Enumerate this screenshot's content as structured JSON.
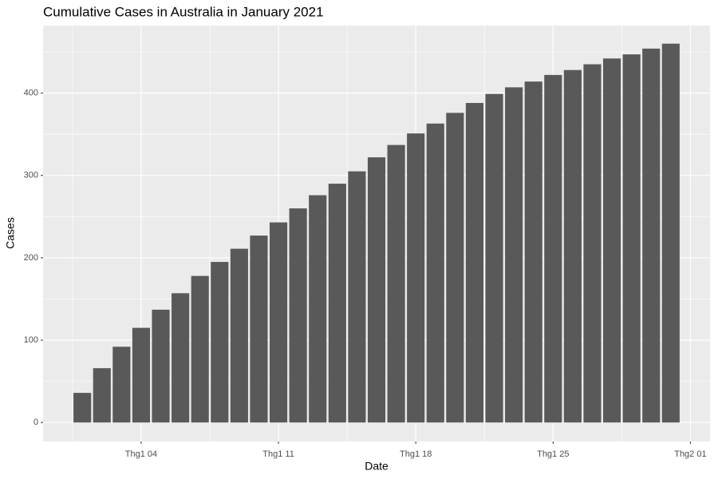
{
  "chart_data": {
    "type": "bar",
    "title": "Cumulative Cases in Australia in January 2021",
    "x_label": "Date",
    "y_label": "Cases",
    "x": [
      1,
      2,
      3,
      4,
      5,
      6,
      7,
      8,
      9,
      10,
      11,
      12,
      13,
      14,
      15,
      16,
      17,
      18,
      19,
      20,
      21,
      22,
      23,
      24,
      25,
      26,
      27,
      28,
      29,
      30,
      31
    ],
    "values": [
      36,
      66,
      92,
      115,
      137,
      157,
      178,
      195,
      211,
      227,
      243,
      260,
      276,
      290,
      305,
      322,
      337,
      351,
      363,
      376,
      388,
      399,
      407,
      414,
      422,
      428,
      435,
      442,
      447,
      454,
      460
    ],
    "color": "#595959",
    "xlim": [
      -1,
      33
    ],
    "xticks": [
      {
        "value": 4,
        "label": "Thg1 04"
      },
      {
        "value": 11,
        "label": "Thg1 11"
      },
      {
        "value": 18,
        "label": "Thg1 18"
      },
      {
        "value": 25,
        "label": "Thg1 25"
      },
      {
        "value": 32,
        "label": "Thg2 01"
      }
    ],
    "xminor": [
      0.5,
      7.5,
      14.5,
      21.5,
      28.5
    ],
    "ylim": [
      -23,
      482
    ],
    "yticks": [
      0,
      100,
      200,
      300,
      400
    ],
    "yminor": [
      50,
      150,
      250,
      350,
      450
    ],
    "grid": true
  }
}
